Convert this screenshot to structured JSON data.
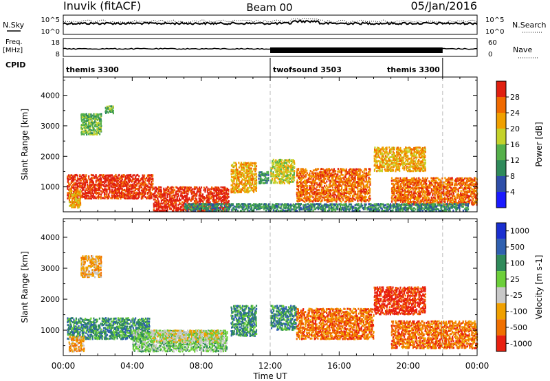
{
  "header": {
    "station": "Inuvik (fitACF)",
    "beam": "Beam 00",
    "date": "05/Jan/2016"
  },
  "noise_panel": {
    "left_label": "N.Sky",
    "left_ticks": [
      "10^5",
      "10^0"
    ],
    "right_ticks": [
      "10^5",
      "10^0"
    ],
    "right_label": "N.Search",
    "right_legend_style": "dotted"
  },
  "freq_panel": {
    "left_label_line1": "Freq.",
    "left_label_line2": "[MHz]",
    "left_ticks": [
      "18",
      "8"
    ],
    "right_ticks": [
      "60",
      "0"
    ],
    "right_label": "Nave",
    "right_legend_style": "dotted"
  },
  "cpid": {
    "label": "CPID",
    "segments": [
      {
        "name": "themis 3300",
        "start_hr": 0,
        "end_hr": 12
      },
      {
        "name": "twofsound 3503",
        "start_hr": 12,
        "end_hr": 22
      },
      {
        "name": "themis 3300",
        "start_hr": 22,
        "end_hr": 24
      }
    ]
  },
  "chart_data": [
    {
      "type": "heatmap",
      "title": "",
      "xlabel": "Time UT",
      "ylabel": "Slant Range [km]",
      "xlim": [
        0,
        24
      ],
      "ylim": [
        180,
        4600
      ],
      "xticks": [
        "00:00",
        "04:00",
        "08:00",
        "12:00",
        "16:00",
        "20:00",
        "00:00"
      ],
      "yticks": [
        1000,
        2000,
        3000,
        4000
      ],
      "colorbar": {
        "label": "Power [dB]",
        "ticks": [
          4,
          8,
          12,
          16,
          20,
          24,
          28
        ],
        "colors": [
          "#1a1aff",
          "#2e4ea8",
          "#2f8a5a",
          "#55b04a",
          "#c4d22a",
          "#f0a000",
          "#f06a00",
          "#e02010"
        ]
      },
      "scatter_regions": [
        {
          "t0": 0.2,
          "t1": 5.2,
          "r0": 600,
          "r1": 1400,
          "level": 7
        },
        {
          "t0": 5.2,
          "t1": 9.6,
          "r0": 200,
          "r1": 1000,
          "level": 7
        },
        {
          "t0": 0.3,
          "t1": 1.0,
          "r0": 300,
          "r1": 900,
          "level": 5
        },
        {
          "t0": 1.0,
          "t1": 2.2,
          "r0": 2700,
          "r1": 3400,
          "level": 3
        },
        {
          "t0": 2.4,
          "t1": 2.9,
          "r0": 3400,
          "r1": 3650,
          "level": 3
        },
        {
          "t0": 9.7,
          "t1": 11.2,
          "r0": 800,
          "r1": 1800,
          "level": 5
        },
        {
          "t0": 11.3,
          "t1": 11.9,
          "r0": 1100,
          "r1": 1500,
          "level": 2
        },
        {
          "t0": 12.0,
          "t1": 13.4,
          "r0": 1100,
          "r1": 1900,
          "level": 4
        },
        {
          "t0": 13.5,
          "t1": 17.8,
          "r0": 500,
          "r1": 1600,
          "level": 6
        },
        {
          "t0": 18.0,
          "t1": 21.0,
          "r0": 1500,
          "r1": 2300,
          "level": 5
        },
        {
          "t0": 19.0,
          "t1": 24.0,
          "r0": 400,
          "r1": 1300,
          "level": 6
        },
        {
          "t0": 7.0,
          "t1": 23.5,
          "r0": 200,
          "r1": 450,
          "level": 2
        }
      ]
    },
    {
      "type": "heatmap",
      "title": "",
      "xlabel": "Time UT",
      "ylabel": "Slant Range [km]",
      "xlim": [
        0,
        24
      ],
      "ylim": [
        180,
        4600
      ],
      "xticks": [
        "00:00",
        "04:00",
        "08:00",
        "12:00",
        "16:00",
        "20:00",
        "00:00"
      ],
      "yticks": [
        1000,
        2000,
        3000,
        4000
      ],
      "colorbar": {
        "label": "Velocity [m s-1]",
        "ticks": [
          "1000",
          "500",
          "100",
          "25",
          "-25",
          "-100",
          "-500",
          "-1000"
        ],
        "colors": [
          "#1a2fd0",
          "#2f60b0",
          "#2f8a5a",
          "#6ccf3a",
          "#c8c8c8",
          "#f0a000",
          "#f07000",
          "#e82010"
        ]
      },
      "scatter_regions": [
        {
          "t0": 0.2,
          "t1": 5.0,
          "r0": 700,
          "r1": 1400,
          "level": 2
        },
        {
          "t0": 4.0,
          "t1": 9.5,
          "r0": 300,
          "r1": 1000,
          "level": 3
        },
        {
          "t0": 5.0,
          "t1": 9.3,
          "r0": 600,
          "r1": 1000,
          "level": 4
        },
        {
          "t0": 0.3,
          "t1": 1.2,
          "r0": 300,
          "r1": 800,
          "level": 5
        },
        {
          "t0": 9.7,
          "t1": 11.2,
          "r0": 800,
          "r1": 1800,
          "level": 2
        },
        {
          "t0": 12.0,
          "t1": 13.5,
          "r0": 1000,
          "r1": 1800,
          "level": 2
        },
        {
          "t0": 13.5,
          "t1": 18.0,
          "r0": 700,
          "r1": 1700,
          "level": 6
        },
        {
          "t0": 18.0,
          "t1": 21.0,
          "r0": 1500,
          "r1": 2400,
          "level": 7
        },
        {
          "t0": 19.0,
          "t1": 24.0,
          "r0": 400,
          "r1": 1300,
          "level": 6
        },
        {
          "t0": 1.0,
          "t1": 2.2,
          "r0": 2700,
          "r1": 3400,
          "level": 5
        }
      ]
    }
  ]
}
